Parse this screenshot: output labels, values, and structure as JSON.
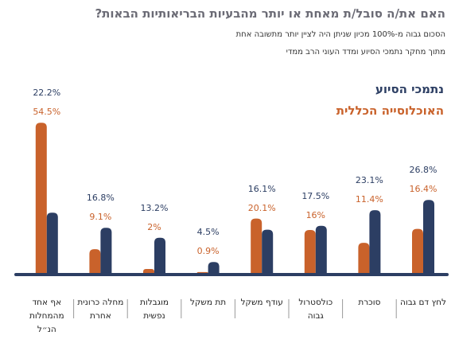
{
  "chart_data": {
    "type": "bar",
    "title": "האם את/ה סובל/ת מאחת או יותר מהבעיות הבריאותיות הבאות?",
    "subtitle": [
      "הסכום גבוה מ-100% מכיון שניתן היה לציין יותר מתשובה אחת",
      "מתוך מחקר נתמכי הסיוע ומדד העוני הרב ממדי"
    ],
    "categories": [
      "לחץ דם גבוה",
      "סוכרת",
      "כולסטרול גבוה",
      "עודף משקל",
      "תת משקל",
      "מוגבלות נפשית",
      "מחלה כרונית אחרת",
      "אף אחד מהמחלות הנ״ל"
    ],
    "series": [
      {
        "name": "נתמכי הסיוע",
        "color": "#2c3e63",
        "values": [
          26.8,
          23.1,
          17.5,
          16.1,
          4.5,
          13.2,
          16.8,
          22.2
        ],
        "value_labels": [
          "26.8%",
          "23.1%",
          "17.5%",
          "16.1%",
          "4.5%",
          "13.2%",
          "16.8%",
          "22.2%"
        ]
      },
      {
        "name": "האוכלוסייה הכללית",
        "color": "#c9622b",
        "values": [
          16.4,
          11.4,
          16,
          20.1,
          0.9,
          2,
          9.1,
          54.5
        ],
        "value_labels": [
          "16.4%",
          "11.4%",
          "16%",
          "20.1%",
          "0.9%",
          "2%",
          "9.1%",
          "54.5%"
        ]
      }
    ]
  }
}
